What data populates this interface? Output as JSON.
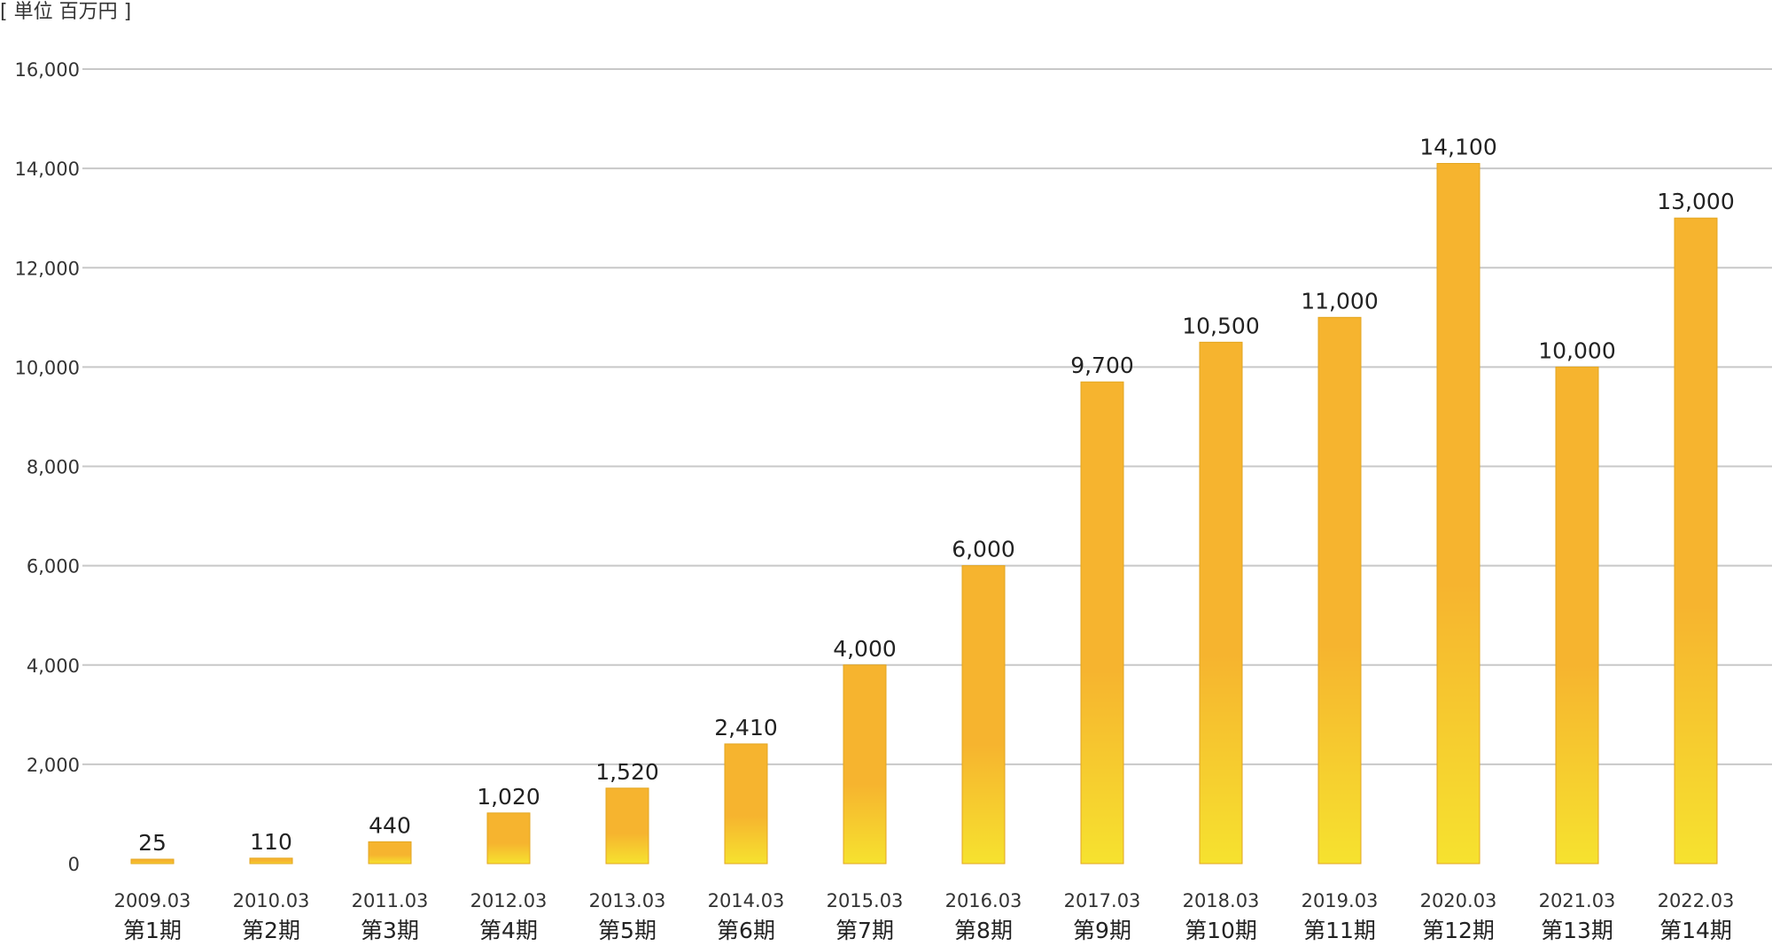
{
  "unit_label": "[ 単位 百万円 ]",
  "colors": {
    "bar_top": "#F6B42F",
    "bar_bottom": "#F6E22F",
    "bar_border": "#E3A620",
    "grid": "#C8C8C8",
    "text": "#333333"
  },
  "chart_data": {
    "type": "bar",
    "categories": [
      "2009.03",
      "2010.03",
      "2011.03",
      "2012.03",
      "2013.03",
      "2014.03",
      "2015.03",
      "2016.03",
      "2017.03",
      "2018.03",
      "2019.03",
      "2020.03",
      "2021.03",
      "2022.03"
    ],
    "periods": [
      "第1期",
      "第2期",
      "第3期",
      "第4期",
      "第5期",
      "第6期",
      "第7期",
      "第8期",
      "第9期",
      "第10期",
      "第11期",
      "第12期",
      "第13期",
      "第14期"
    ],
    "values": [
      25,
      110,
      440,
      1020,
      1520,
      2410,
      4000,
      6000,
      9700,
      10500,
      11000,
      14100,
      10000,
      13000
    ],
    "value_labels": [
      "25",
      "110",
      "440",
      "1,020",
      "1,520",
      "2,410",
      "4,000",
      "6,000",
      "9,700",
      "10,500",
      "11,000",
      "14,100",
      "10,000",
      "13,000"
    ],
    "yticks": [
      0,
      2000,
      4000,
      6000,
      8000,
      10000,
      12000,
      14000,
      16000
    ],
    "ytick_labels": [
      "0",
      "2,000",
      "4,000",
      "6,000",
      "8,000",
      "10,000",
      "12,000",
      "14,000",
      "16,000"
    ],
    "ylim": [
      0,
      16000
    ],
    "grid": true,
    "legend": "none"
  }
}
